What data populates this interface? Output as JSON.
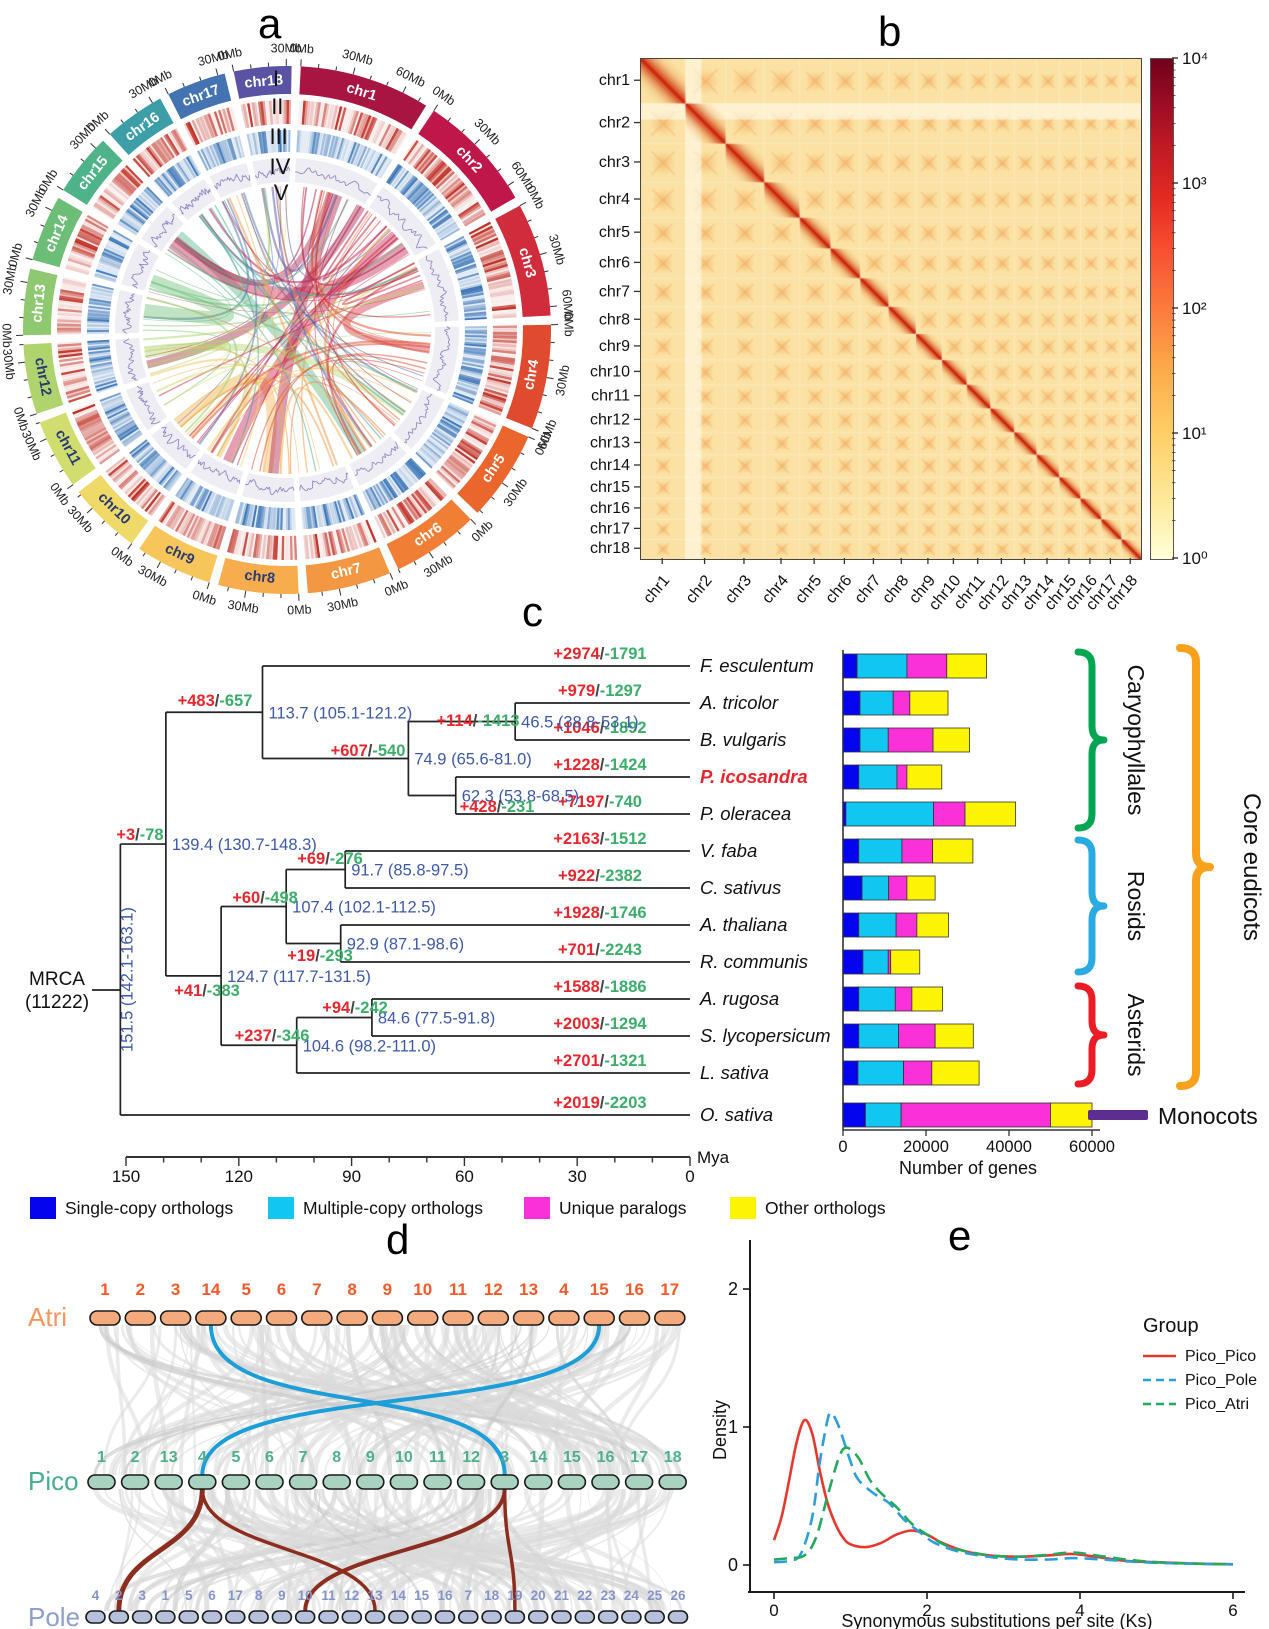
{
  "panels": {
    "a": "a",
    "b": "b",
    "c": "c",
    "d": "d",
    "e": "e"
  },
  "circos": {
    "ring_labels": [
      "I",
      "II",
      "III",
      "IV",
      "V"
    ],
    "tick_labels": [
      "0Mb",
      "30Mb",
      "60Mb"
    ],
    "chromosomes": [
      {
        "name": "chr1",
        "length_mb": 75,
        "color": "#A81542",
        "text": "#ffffff"
      },
      {
        "name": "chr2",
        "length_mb": 68,
        "color": "#C0174B",
        "text": "#ffffff"
      },
      {
        "name": "chr3",
        "length_mb": 65,
        "color": "#D02C3C",
        "text": "#ffffff"
      },
      {
        "name": "chr4",
        "length_mb": 60,
        "color": "#E04A2E",
        "text": "#ffffff"
      },
      {
        "name": "chr5",
        "length_mb": 52,
        "color": "#EA662C",
        "text": "#ffffff"
      },
      {
        "name": "chr6",
        "length_mb": 50,
        "color": "#F07E35",
        "text": "#ffffff"
      },
      {
        "name": "chr7",
        "length_mb": 48,
        "color": "#F49742",
        "text": "#ffffff"
      },
      {
        "name": "chr8",
        "length_mb": 46,
        "color": "#F7AD4D",
        "text": "#273A74"
      },
      {
        "name": "chr9",
        "length_mb": 44,
        "color": "#F8C55B",
        "text": "#273A74"
      },
      {
        "name": "chr10",
        "length_mb": 42,
        "color": "#EFD968",
        "text": "#273A74"
      },
      {
        "name": "chr11",
        "length_mb": 40,
        "color": "#D2DD70",
        "text": "#273A74"
      },
      {
        "name": "chr12",
        "length_mb": 40,
        "color": "#AFD46E",
        "text": "#273A74"
      },
      {
        "name": "chr13",
        "length_mb": 38,
        "color": "#8EC971",
        "text": "#ffffff"
      },
      {
        "name": "chr14",
        "length_mb": 38,
        "color": "#6CBD75",
        "text": "#ffffff"
      },
      {
        "name": "chr15",
        "length_mb": 36,
        "color": "#4EB389",
        "text": "#ffffff"
      },
      {
        "name": "chr16",
        "length_mb": 35,
        "color": "#3C9FA7",
        "text": "#ffffff"
      },
      {
        "name": "chr17",
        "length_mb": 34,
        "color": "#4473B2",
        "text": "#ffffff"
      },
      {
        "name": "chr18",
        "length_mb": 33,
        "color": "#5A53A3",
        "text": "#ffffff"
      }
    ]
  },
  "tree": {
    "age": 151.5,
    "label": "151.5 (142.1-163.1)",
    "vertical_label": true,
    "children": [
      {
        "age": 139.4,
        "label": "139.4 (130.7-148.3)",
        "gain": "+3",
        "loss": "-78",
        "children": [
          {
            "age": 113.7,
            "label": "113.7 (105.1-121.2)",
            "gain": "+483",
            "loss": "-657",
            "children": [
              {
                "tip": "F. esculentum",
                "gain": "+2974",
                "loss": "-1791"
              },
              {
                "age": 74.9,
                "label": "74.9 (65.6-81.0)",
                "gain": "+607",
                "loss": "-540",
                "children": [
                  {
                    "age": 46.5,
                    "label": "46.5 (38.8-53.1)",
                    "gain": "+114",
                    "loss": "-1413",
                    "children": [
                      {
                        "tip": "A. tricolor",
                        "gain": "+979",
                        "loss": "-1297"
                      },
                      {
                        "tip": "B. vulgaris",
                        "gain": "+1046",
                        "loss": "-1892"
                      }
                    ]
                  },
                  {
                    "age": 62.3,
                    "label": "62.3 (53.8-68.5)",
                    "gain": "+428",
                    "loss": "-231",
                    "children": [
                      {
                        "tip": "P. icosandra",
                        "gain": "+1228",
                        "loss": "-1424",
                        "highlight": true
                      },
                      {
                        "tip": "P. oleracea",
                        "gain": "+7197",
                        "loss": "-740"
                      }
                    ]
                  }
                ]
              }
            ]
          },
          {
            "age": 124.7,
            "label": "124.7 (117.7-131.5)",
            "gain": "+41",
            "loss": "-383",
            "children": [
              {
                "age": 107.4,
                "label": "107.4 (102.1-112.5)",
                "gain": "+60",
                "loss": "-498",
                "children": [
                  {
                    "age": 91.7,
                    "label": "91.7 (85.8-97.5)",
                    "gain": "+69",
                    "loss": "-276",
                    "children": [
                      {
                        "tip": "V. faba",
                        "gain": "+2163",
                        "loss": "-1512"
                      },
                      {
                        "tip": "C. sativus",
                        "gain": "+922",
                        "loss": "-2382"
                      }
                    ]
                  },
                  {
                    "age": 92.9,
                    "label": "92.9 (87.1-98.6)",
                    "gain": "+19",
                    "loss": "-293",
                    "children": [
                      {
                        "tip": "A. thaliana",
                        "gain": "+1928",
                        "loss": "-1746"
                      },
                      {
                        "tip": "R. communis",
                        "gain": "+701",
                        "loss": "-2243"
                      }
                    ]
                  }
                ]
              },
              {
                "age": 104.6,
                "label": "104.6 (98.2-111.0)",
                "gain": "+237",
                "loss": "-346",
                "children": [
                  {
                    "age": 84.6,
                    "label": "84.6 (77.5-91.8)",
                    "gain": "+94",
                    "loss": "-242",
                    "children": [
                      {
                        "tip": "A. rugosa",
                        "gain": "+1588",
                        "loss": "-1886"
                      },
                      {
                        "tip": "S. lycopersicum",
                        "gain": "+2003",
                        "loss": "-1294"
                      }
                    ]
                  },
                  {
                    "tip": "L. sativa",
                    "gain": "+2701",
                    "loss": "-1321"
                  }
                ]
              }
            ]
          }
        ]
      },
      {
        "tip": "O. sativa",
        "gain": "+2019",
        "loss": "-2203"
      }
    ]
  },
  "mrca": {
    "line1": "MRCA",
    "line2": "(11222)"
  },
  "tree_axis": {
    "ticks": [
      "150",
      "120",
      "90",
      "60",
      "30",
      "0"
    ],
    "unit": "Mya"
  },
  "clades": [
    {
      "label": "Caryophyllales",
      "color": "#00A651"
    },
    {
      "label": "Rosids",
      "color": "#29ABE2"
    },
    {
      "label": "Asterids",
      "color": "#EC1C24"
    },
    {
      "label": "Core eudicots",
      "color": "#F9A11B"
    },
    {
      "label": "Monocots",
      "color": "#5E2D91"
    }
  ],
  "ortholog_legend": [
    {
      "label": "Single-copy orthologs",
      "color": "#0504EE"
    },
    {
      "label": "Multiple-copy orthologs",
      "color": "#11C7F2"
    },
    {
      "label": "Unique paralogs",
      "color": "#FA30D8"
    },
    {
      "label": "Other orthologs",
      "color": "#FCF403"
    }
  ],
  "synteny": {
    "rows": [
      {
        "name": "Atri",
        "label_color": "#F6955F",
        "number_color": "#F15A29",
        "capsule_fill": "#F3AA7C",
        "chromosomes": [
          "1",
          "2",
          "3",
          "14",
          "5",
          "6",
          "7",
          "8",
          "9",
          "10",
          "11",
          "12",
          "13",
          "4",
          "15",
          "16",
          "17"
        ]
      },
      {
        "name": "Pico",
        "label_color": "#45AE8C",
        "number_color": "#4DB08A",
        "capsule_fill": "#A9D3C0",
        "chromosomes": [
          "1",
          "2",
          "13",
          "4",
          "5",
          "6",
          "7",
          "8",
          "9",
          "10",
          "11",
          "12",
          "3",
          "14",
          "15",
          "16",
          "17",
          "18"
        ]
      },
      {
        "name": "Pole",
        "label_color": "#8E9FCC",
        "number_color": "#8494C8",
        "capsule_fill": "#B6C0DD",
        "chromosomes": [
          "4",
          "2",
          "3",
          "1",
          "5",
          "6",
          "17",
          "8",
          "9",
          "10",
          "11",
          "12",
          "13",
          "14",
          "15",
          "16",
          "7",
          "18",
          "19",
          "20",
          "21",
          "22",
          "23",
          "24",
          "25",
          "26"
        ]
      }
    ],
    "highlight_colors": {
      "atri_pico": "#1C9ED9",
      "pico_pole": "#8C2E1F"
    }
  },
  "chart_data": [
    {
      "id": "hic_contact_map",
      "type": "heatmap",
      "title": "b",
      "rows": [
        "chr1",
        "chr2",
        "chr3",
        "chr4",
        "chr5",
        "chr6",
        "chr7",
        "chr8",
        "chr9",
        "chr10",
        "chr11",
        "chr12",
        "chr13",
        "chr14",
        "chr15",
        "chr16",
        "chr17",
        "chr18"
      ],
      "cols": [
        "chr1",
        "chr2",
        "chr3",
        "chr4",
        "chr5",
        "chr6",
        "chr7",
        "chr8",
        "chr9",
        "chr10",
        "chr11",
        "chr12",
        "chr13",
        "chr14",
        "chr15",
        "chr16",
        "chr17",
        "chr18"
      ],
      "colorbar": {
        "scale": "log10",
        "tick_labels": [
          "10⁴",
          "10³",
          "10²",
          "10¹",
          "10⁰"
        ],
        "min": 1,
        "max": 10000
      },
      "pattern": "strong red diagonal self-contact blocks on pale yellow background"
    },
    {
      "id": "gene_families",
      "type": "bar",
      "stacked": true,
      "orientation": "horizontal",
      "categories": [
        "F. esculentum",
        "A. tricolor",
        "B. vulgaris",
        "P. icosandra",
        "P. oleracea",
        "V. faba",
        "C. sativus",
        "A. thaliana",
        "R. communis",
        "A. rugosa",
        "S. lycopersicum",
        "L. sativa",
        "O. sativa"
      ],
      "series": [
        {
          "name": "Single-copy orthologs",
          "color": "#0504EE",
          "values": [
            3400,
            4100,
            4100,
            3800,
            700,
            3800,
            4600,
            3800,
            4800,
            3800,
            3800,
            3600,
            5400
          ]
        },
        {
          "name": "Multiple-copy orthologs",
          "color": "#11C7F2",
          "values": [
            12000,
            8000,
            6800,
            9200,
            21100,
            10400,
            6400,
            9000,
            6100,
            8800,
            9600,
            11000,
            8600
          ]
        },
        {
          "name": "Unique paralogs",
          "color": "#FA30D8",
          "values": [
            9600,
            4000,
            10800,
            2400,
            7600,
            7400,
            4400,
            5000,
            600,
            4000,
            8800,
            6800,
            36000
          ]
        },
        {
          "name": "Other orthologs",
          "color": "#FCF403",
          "values": [
            9600,
            9200,
            8800,
            8400,
            12200,
            9700,
            6800,
            7600,
            7000,
            7400,
            9200,
            11400,
            10000
          ]
        }
      ],
      "xlabel": "Number of genes",
      "xticks": [
        "0",
        "20000",
        "40000",
        "60000"
      ],
      "xlim": [
        0,
        66000
      ]
    },
    {
      "id": "ks_density",
      "type": "line",
      "xlabel": "Synonymous substitutions per site (Ks)",
      "ylabel": "Density",
      "xticks": [
        "0",
        "2",
        "4",
        "6"
      ],
      "yticks": [
        "0",
        "1",
        "2"
      ],
      "xlim": [
        0,
        6.2
      ],
      "ylim": [
        0,
        2.1
      ],
      "legend_title": "Group",
      "series": [
        {
          "name": "Pico_Pico",
          "color": "#E8382D",
          "style": "solid",
          "points": [
            [
              0,
              0.18
            ],
            [
              0.1,
              0.35
            ],
            [
              0.2,
              0.62
            ],
            [
              0.3,
              0.9
            ],
            [
              0.4,
              1.05
            ],
            [
              0.5,
              0.95
            ],
            [
              0.6,
              0.68
            ],
            [
              0.7,
              0.45
            ],
            [
              0.8,
              0.3
            ],
            [
              0.9,
              0.2
            ],
            [
              1.0,
              0.15
            ],
            [
              1.2,
              0.13
            ],
            [
              1.4,
              0.16
            ],
            [
              1.6,
              0.22
            ],
            [
              1.8,
              0.25
            ],
            [
              2.0,
              0.22
            ],
            [
              2.2,
              0.16
            ],
            [
              2.5,
              0.1
            ],
            [
              2.8,
              0.07
            ],
            [
              3.2,
              0.06
            ],
            [
              3.6,
              0.07
            ],
            [
              3.9,
              0.08
            ],
            [
              4.2,
              0.06
            ],
            [
              4.6,
              0.03
            ],
            [
              5.0,
              0.02
            ],
            [
              5.5,
              0.01
            ],
            [
              6.0,
              0.005
            ]
          ]
        },
        {
          "name": "Pico_Pole",
          "color": "#2B9FD8",
          "style": "dashed",
          "points": [
            [
              0,
              0.02
            ],
            [
              0.2,
              0.03
            ],
            [
              0.35,
              0.08
            ],
            [
              0.5,
              0.35
            ],
            [
              0.6,
              0.75
            ],
            [
              0.7,
              1.05
            ],
            [
              0.75,
              1.1
            ],
            [
              0.85,
              1.0
            ],
            [
              1.0,
              0.75
            ],
            [
              1.1,
              0.62
            ],
            [
              1.3,
              0.52
            ],
            [
              1.5,
              0.45
            ],
            [
              1.7,
              0.33
            ],
            [
              1.9,
              0.24
            ],
            [
              2.1,
              0.16
            ],
            [
              2.4,
              0.1
            ],
            [
              2.8,
              0.06
            ],
            [
              3.2,
              0.04
            ],
            [
              3.6,
              0.04
            ],
            [
              3.9,
              0.05
            ],
            [
              4.3,
              0.04
            ],
            [
              4.8,
              0.02
            ],
            [
              5.4,
              0.01
            ],
            [
              6.0,
              0.005
            ]
          ]
        },
        {
          "name": "Pico_Atri",
          "color": "#27A85F",
          "style": "dashed",
          "points": [
            [
              0,
              0.04
            ],
            [
              0.2,
              0.05
            ],
            [
              0.4,
              0.07
            ],
            [
              0.55,
              0.2
            ],
            [
              0.7,
              0.5
            ],
            [
              0.85,
              0.78
            ],
            [
              0.95,
              0.85
            ],
            [
              1.1,
              0.78
            ],
            [
              1.25,
              0.62
            ],
            [
              1.4,
              0.52
            ],
            [
              1.6,
              0.42
            ],
            [
              1.8,
              0.3
            ],
            [
              2.0,
              0.22
            ],
            [
              2.3,
              0.13
            ],
            [
              2.7,
              0.08
            ],
            [
              3.1,
              0.06
            ],
            [
              3.5,
              0.07
            ],
            [
              3.9,
              0.09
            ],
            [
              4.2,
              0.07
            ],
            [
              4.6,
              0.04
            ],
            [
              5.0,
              0.02
            ],
            [
              5.5,
              0.01
            ],
            [
              6.0,
              0.005
            ]
          ]
        }
      ]
    }
  ]
}
